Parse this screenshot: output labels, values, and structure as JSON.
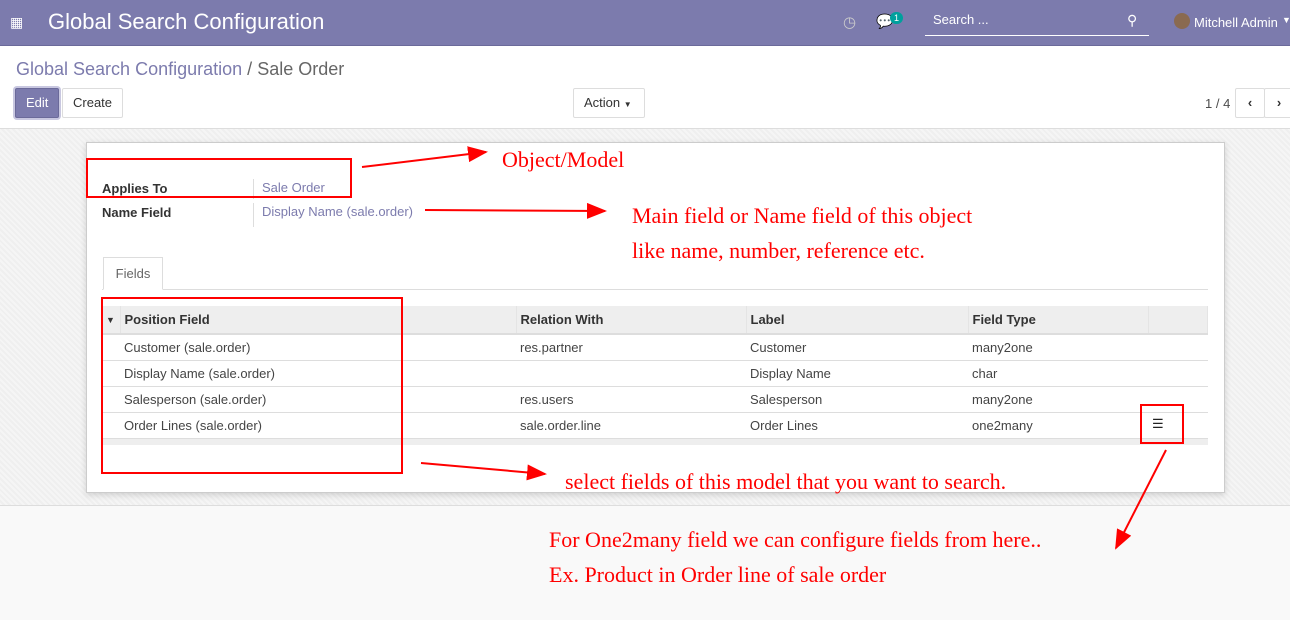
{
  "navbar": {
    "title": "Global Search Configuration",
    "apps_icon": "grid-icon",
    "activity_icon": "clock-icon",
    "chat_icon": "chat-icon",
    "chat_badge": "1",
    "search_placeholder": "Search ...",
    "user": "Mitchell Admin",
    "accent": "#7c7bad"
  },
  "breadcrumb": {
    "parent": "Global Search Configuration",
    "separator": "/",
    "current": "Sale Order"
  },
  "toolbar": {
    "edit": "Edit",
    "create": "Create",
    "action": "Action",
    "pager": "1 / 4"
  },
  "form": {
    "applies_to_label": "Applies To",
    "applies_to_value": "Sale Order",
    "name_field_label": "Name Field",
    "name_field_value": "Display Name (sale.order)"
  },
  "tabs": [
    {
      "label": "Fields"
    }
  ],
  "table": {
    "columns": [
      "Position Field",
      "Relation With",
      "Label",
      "Field Type"
    ],
    "rows": [
      [
        "Customer (sale.order)",
        "res.partner",
        "Customer",
        "many2one"
      ],
      [
        "Display Name (sale.order)",
        "",
        "Display Name",
        "char"
      ],
      [
        "Salesperson (sale.order)",
        "res.users",
        "Salesperson",
        "many2one"
      ],
      [
        "Order Lines (sale.order)",
        "sale.order.line",
        "Order Lines",
        "one2many"
      ]
    ]
  },
  "annotations": {
    "a1": "Object/Model",
    "a2": "Main field or Name field of this object",
    "a3": "like name, number, reference etc.",
    "a4": "select fields of this model that you want to search.",
    "a5": "For One2many field we can configure fields from here..",
    "a6": "Ex. Product in Order line of sale order",
    "color": "#ff0000"
  }
}
